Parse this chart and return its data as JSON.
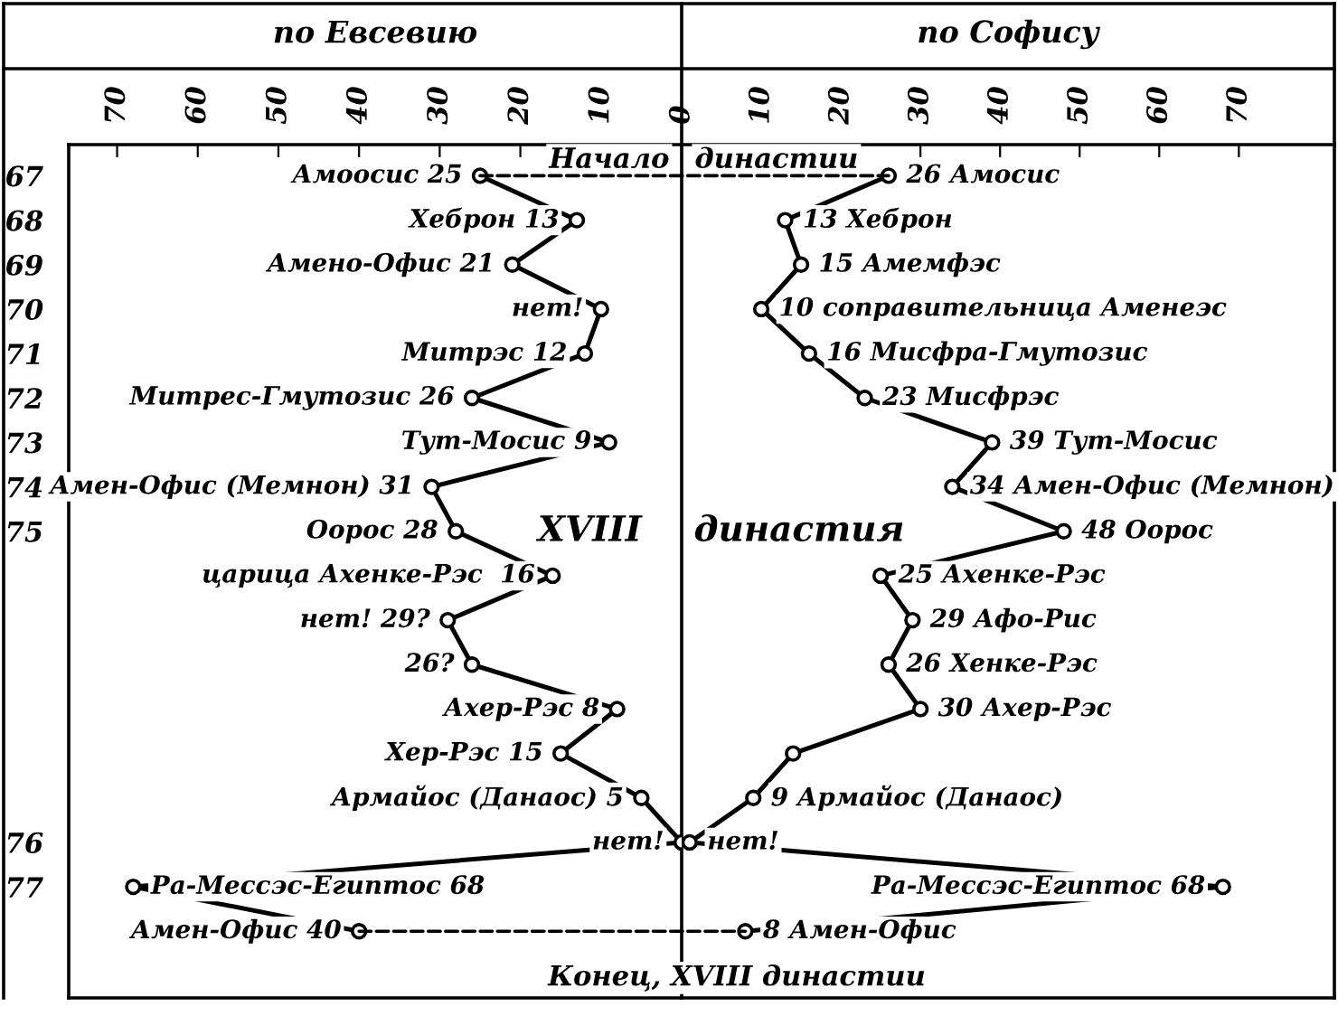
{
  "chart_data": [
    {
      "type": "line",
      "title": "по Евсевию",
      "orientation": "horizontal",
      "color": "#000000",
      "marker": "circle",
      "line_style": "solid",
      "grid": false,
      "categories": [
        "67",
        "68",
        "69",
        "70",
        "71",
        "72",
        "73",
        "74",
        "75",
        null,
        null,
        null,
        null,
        null,
        null,
        "76",
        "77",
        null
      ],
      "values": [
        25,
        13,
        21,
        10,
        12,
        26,
        9,
        31,
        28,
        16,
        29,
        26,
        8,
        15,
        5,
        0,
        68,
        40
      ],
      "value_labels": [
        "Амоосис 25",
        "Хеброн 13",
        "Амено-Офис 21",
        "нет!",
        "Митрэс 12",
        "Митрес-Гмутозис 26",
        "Тут-Мосис 9",
        "Амен-Офис (Мемнон) 31",
        "Оорос 28",
        "царица Ахенке-Рэс  16",
        "нет! 29?",
        "26?",
        "Ахер-Рэс 8",
        "Хер-Рэс 15",
        "Армайос (Данаос) 5",
        "нет!",
        "Ра-Мессэс-Египтос 68",
        "Амен-Офис 40"
      ],
      "xlim": [
        76,
        0
      ],
      "xticks": [
        0,
        10,
        20,
        30,
        40,
        50,
        60,
        70
      ],
      "annotations": [
        "Начало",
        "XVIII",
        "Конец, XVIII династии"
      ]
    },
    {
      "type": "line",
      "title": "по Софису",
      "orientation": "horizontal",
      "color": "#000000",
      "marker": "circle",
      "line_style": "solid",
      "grid": false,
      "tick_labels": "x",
      "categories": [
        "67",
        "68",
        "69",
        "70",
        "71",
        "72",
        "73",
        "74",
        "75",
        null,
        null,
        null,
        null,
        null,
        null,
        "76",
        "77",
        null
      ],
      "values": [
        26,
        13,
        15,
        10,
        16,
        23,
        39,
        34,
        48,
        25,
        29,
        26,
        30,
        14,
        9,
        1,
        68,
        8
      ],
      "value_labels": [
        "26 Амосис",
        "13 Хеброн",
        "15 Амемфэс",
        "10 соправительница Аменеэс",
        "16 Мисфра-Гмутозис",
        "23 Мисфрэс",
        "39 Тут-Мосис",
        "34 Амен-Офис (Мемнон)",
        "48 Оорос",
        "25 Ахенке-Рэс",
        "29 Афо-Рис",
        "26 Хенке-Рэс",
        "30 Ахер-Рэс",
        null,
        "9 Армайос (Данаос)",
        "нет!",
        "Ра-Мессэс-Египтос 68",
        "8 Амен-Офис"
      ],
      "xlim": [
        0,
        82
      ],
      "xticks": [
        10,
        20,
        30,
        40,
        50,
        60,
        70
      ],
      "annotations": [
        "династии",
        "династия"
      ]
    }
  ]
}
